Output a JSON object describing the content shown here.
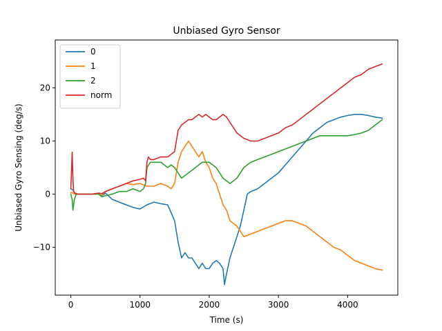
{
  "chart_data": {
    "type": "line",
    "title": "Unbiased Gyro Sensor",
    "xlabel": "Time (s)",
    "ylabel": "Unbiased Gyro Sensing (deg/s)",
    "xlim": [
      -225,
      4725
    ],
    "ylim": [
      -19,
      29
    ],
    "x_ticks": [
      0,
      1000,
      2000,
      3000,
      4000
    ],
    "x_tick_labels": [
      "0",
      "1000",
      "2000",
      "3000",
      "4000"
    ],
    "y_ticks": [
      -10,
      0,
      10,
      20
    ],
    "y_tick_labels": [
      "−10",
      "0",
      "10",
      "20"
    ],
    "grid": false,
    "legend_position": "top-left",
    "series": [
      {
        "name": "0",
        "color": "#1f77b4",
        "points": [
          [
            0,
            1.0
          ],
          [
            30,
            0.8
          ],
          [
            60,
            0.1
          ],
          [
            100,
            0
          ],
          [
            200,
            0
          ],
          [
            300,
            0
          ],
          [
            400,
            0.1
          ],
          [
            450,
            -0.3
          ],
          [
            500,
            0.2
          ],
          [
            600,
            -1.0
          ],
          [
            700,
            -1.5
          ],
          [
            800,
            -2.0
          ],
          [
            900,
            -2.5
          ],
          [
            1000,
            -2.8
          ],
          [
            1100,
            -2.0
          ],
          [
            1200,
            -1.5
          ],
          [
            1300,
            -1.8
          ],
          [
            1400,
            -2.0
          ],
          [
            1450,
            -3.5
          ],
          [
            1500,
            -5.0
          ],
          [
            1550,
            -9.0
          ],
          [
            1600,
            -12.0
          ],
          [
            1650,
            -11.0
          ],
          [
            1700,
            -12.0
          ],
          [
            1750,
            -12.0
          ],
          [
            1800,
            -13.0
          ],
          [
            1850,
            -14.0
          ],
          [
            1900,
            -13.0
          ],
          [
            1950,
            -14.0
          ],
          [
            2000,
            -14.0
          ],
          [
            2050,
            -13.0
          ],
          [
            2100,
            -12.5
          ],
          [
            2150,
            -13.0
          ],
          [
            2200,
            -14.0
          ],
          [
            2220,
            -17.0
          ],
          [
            2250,
            -15.0
          ],
          [
            2300,
            -12.0
          ],
          [
            2350,
            -10.0
          ],
          [
            2400,
            -8.0
          ],
          [
            2450,
            -6.0
          ],
          [
            2500,
            -3.0
          ],
          [
            2550,
            0.0
          ],
          [
            2600,
            0.5
          ],
          [
            2700,
            1.0
          ],
          [
            2800,
            2.0
          ],
          [
            2900,
            3.0
          ],
          [
            3000,
            4.0
          ],
          [
            3100,
            5.5
          ],
          [
            3200,
            7.0
          ],
          [
            3300,
            8.5
          ],
          [
            3400,
            10.0
          ],
          [
            3500,
            11.5
          ],
          [
            3600,
            12.5
          ],
          [
            3700,
            13.5
          ],
          [
            3800,
            14.0
          ],
          [
            3900,
            14.5
          ],
          [
            4000,
            14.8
          ],
          [
            4100,
            15.0
          ],
          [
            4200,
            15.0
          ],
          [
            4300,
            14.8
          ],
          [
            4400,
            14.5
          ],
          [
            4500,
            14.3
          ]
        ]
      },
      {
        "name": "1",
        "color": "#ff7f0e",
        "points": [
          [
            0,
            0.3
          ],
          [
            30,
            0.2
          ],
          [
            60,
            0
          ],
          [
            100,
            0
          ],
          [
            200,
            0
          ],
          [
            300,
            0
          ],
          [
            400,
            0
          ],
          [
            450,
            -0.2
          ],
          [
            500,
            0.5
          ],
          [
            600,
            1.0
          ],
          [
            700,
            1.5
          ],
          [
            800,
            2.0
          ],
          [
            900,
            1.8
          ],
          [
            1000,
            2.0
          ],
          [
            1100,
            1.5
          ],
          [
            1200,
            1.5
          ],
          [
            1300,
            2.0
          ],
          [
            1400,
            1.5
          ],
          [
            1450,
            1.0
          ],
          [
            1500,
            2.0
          ],
          [
            1550,
            6.0
          ],
          [
            1600,
            8.0
          ],
          [
            1650,
            9.0
          ],
          [
            1700,
            10.0
          ],
          [
            1750,
            9.0
          ],
          [
            1800,
            8.0
          ],
          [
            1850,
            7.0
          ],
          [
            1900,
            8.0
          ],
          [
            1950,
            6.0
          ],
          [
            2000,
            5.0
          ],
          [
            2050,
            3.0
          ],
          [
            2100,
            2.0
          ],
          [
            2150,
            0.0
          ],
          [
            2200,
            -2.0
          ],
          [
            2250,
            -3.0
          ],
          [
            2300,
            -5.0
          ],
          [
            2400,
            -6.0
          ],
          [
            2500,
            -8.0
          ],
          [
            2600,
            -7.5
          ],
          [
            2700,
            -7.0
          ],
          [
            2800,
            -6.5
          ],
          [
            2900,
            -6.0
          ],
          [
            3000,
            -5.5
          ],
          [
            3100,
            -5.0
          ],
          [
            3200,
            -5.0
          ],
          [
            3300,
            -5.5
          ],
          [
            3400,
            -6.0
          ],
          [
            3500,
            -7.0
          ],
          [
            3600,
            -8.0
          ],
          [
            3700,
            -9.0
          ],
          [
            3800,
            -10.0
          ],
          [
            3900,
            -10.5
          ],
          [
            4000,
            -11.5
          ],
          [
            4100,
            -12.5
          ],
          [
            4200,
            -13.0
          ],
          [
            4300,
            -13.5
          ],
          [
            4400,
            -14.0
          ],
          [
            4500,
            -14.3
          ]
        ]
      },
      {
        "name": "2",
        "color": "#2ca02c",
        "points": [
          [
            0,
            0
          ],
          [
            20,
            -1.0
          ],
          [
            30,
            -3.0
          ],
          [
            50,
            -1.0
          ],
          [
            80,
            0
          ],
          [
            100,
            0
          ],
          [
            200,
            0
          ],
          [
            300,
            0
          ],
          [
            400,
            0
          ],
          [
            450,
            -0.5
          ],
          [
            500,
            -0.3
          ],
          [
            600,
            0.0
          ],
          [
            700,
            0.5
          ],
          [
            800,
            0.5
          ],
          [
            900,
            1.0
          ],
          [
            1000,
            0.5
          ],
          [
            1050,
            1.0
          ],
          [
            1080,
            2.0
          ],
          [
            1100,
            5.0
          ],
          [
            1150,
            6.0
          ],
          [
            1200,
            6.0
          ],
          [
            1300,
            6.0
          ],
          [
            1400,
            5.0
          ],
          [
            1450,
            5.5
          ],
          [
            1500,
            5.0
          ],
          [
            1550,
            4.0
          ],
          [
            1600,
            3.0
          ],
          [
            1700,
            4.0
          ],
          [
            1800,
            5.0
          ],
          [
            1900,
            6.0
          ],
          [
            2000,
            6.0
          ],
          [
            2100,
            5.0
          ],
          [
            2200,
            3.0
          ],
          [
            2300,
            2.0
          ],
          [
            2400,
            3.0
          ],
          [
            2500,
            5.0
          ],
          [
            2600,
            6.0
          ],
          [
            2700,
            6.5
          ],
          [
            2800,
            7.0
          ],
          [
            2900,
            7.5
          ],
          [
            3000,
            8.0
          ],
          [
            3100,
            8.5
          ],
          [
            3200,
            9.0
          ],
          [
            3300,
            9.5
          ],
          [
            3400,
            10.0
          ],
          [
            3500,
            10.5
          ],
          [
            3600,
            11.0
          ],
          [
            3700,
            11.0
          ],
          [
            3800,
            11.0
          ],
          [
            3900,
            11.0
          ],
          [
            4000,
            11.0
          ],
          [
            4100,
            11.2
          ],
          [
            4200,
            11.5
          ],
          [
            4300,
            12.0
          ],
          [
            4400,
            13.0
          ],
          [
            4500,
            14.0
          ]
        ]
      },
      {
        "name": "norm",
        "color": "#d62728",
        "points": [
          [
            0,
            1.0
          ],
          [
            10,
            4.0
          ],
          [
            20,
            7.9
          ],
          [
            30,
            3.0
          ],
          [
            40,
            0.5
          ],
          [
            60,
            0.2
          ],
          [
            100,
            0
          ],
          [
            200,
            0
          ],
          [
            300,
            0
          ],
          [
            400,
            0.2
          ],
          [
            450,
            0.1
          ],
          [
            500,
            0.5
          ],
          [
            600,
            1.0
          ],
          [
            700,
            1.5
          ],
          [
            800,
            2.0
          ],
          [
            900,
            2.5
          ],
          [
            1000,
            2.8
          ],
          [
            1050,
            3.0
          ],
          [
            1080,
            2.5
          ],
          [
            1100,
            6.0
          ],
          [
            1120,
            7.0
          ],
          [
            1150,
            6.5
          ],
          [
            1200,
            6.5
          ],
          [
            1300,
            7.0
          ],
          [
            1400,
            7.0
          ],
          [
            1450,
            7.5
          ],
          [
            1500,
            8.0
          ],
          [
            1550,
            12.0
          ],
          [
            1600,
            13.0
          ],
          [
            1650,
            13.5
          ],
          [
            1700,
            14.0
          ],
          [
            1750,
            14.0
          ],
          [
            1800,
            14.5
          ],
          [
            1850,
            15.0
          ],
          [
            1900,
            14.5
          ],
          [
            1950,
            15.0
          ],
          [
            2000,
            14.5
          ],
          [
            2050,
            14.0
          ],
          [
            2100,
            14.0
          ],
          [
            2150,
            14.5
          ],
          [
            2200,
            15.0
          ],
          [
            2250,
            14.5
          ],
          [
            2300,
            13.5
          ],
          [
            2350,
            12.5
          ],
          [
            2400,
            11.5
          ],
          [
            2500,
            10.5
          ],
          [
            2600,
            10.0
          ],
          [
            2700,
            10.0
          ],
          [
            2800,
            10.5
          ],
          [
            2900,
            11.0
          ],
          [
            3000,
            11.5
          ],
          [
            3100,
            12.5
          ],
          [
            3200,
            13.0
          ],
          [
            3300,
            14.0
          ],
          [
            3400,
            15.0
          ],
          [
            3500,
            16.0
          ],
          [
            3600,
            17.0
          ],
          [
            3700,
            18.0
          ],
          [
            3800,
            19.0
          ],
          [
            3900,
            20.0
          ],
          [
            4000,
            21.0
          ],
          [
            4100,
            22.0
          ],
          [
            4200,
            22.5
          ],
          [
            4300,
            23.5
          ],
          [
            4400,
            24.0
          ],
          [
            4500,
            24.5
          ]
        ]
      }
    ]
  }
}
